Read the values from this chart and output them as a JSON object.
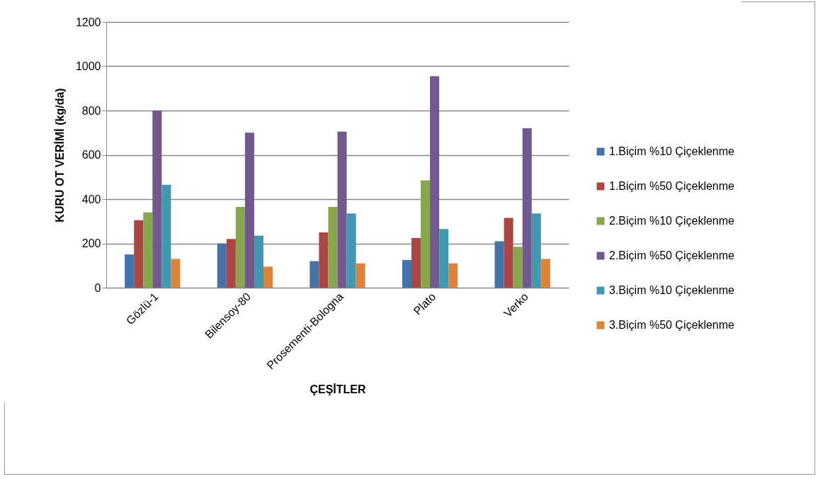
{
  "chart_data": {
    "type": "bar",
    "xlabel": "ÇEŞİTLER",
    "ylabel": "KURU OT VERİMİ (kg/da)",
    "categories": [
      "Gözlü-1",
      "Bilensoy-80",
      "Prosementi-Bologna",
      "Plato",
      "Verko"
    ],
    "series": [
      {
        "name": "1.Biçim %10 Çiçeklenme",
        "color": "#4572a7",
        "values": [
          150,
          200,
          120,
          125,
          210
        ]
      },
      {
        "name": "1.Biçim %50 Çiçeklenme",
        "color": "#aa4643",
        "values": [
          305,
          220,
          250,
          225,
          315
        ]
      },
      {
        "name": "2.Biçim %10 Çiçeklenme",
        "color": "#89a54e",
        "values": [
          340,
          365,
          365,
          485,
          185
        ]
      },
      {
        "name": "2.Biçim %50 Çiçeklenme",
        "color": "#71588f",
        "values": [
          800,
          700,
          705,
          955,
          720
        ]
      },
      {
        "name": "3.Biçim %10 Çiçeklenme",
        "color": "#4198af",
        "values": [
          465,
          235,
          335,
          265,
          335
        ]
      },
      {
        "name": "3.Biçim %50 Çiçeklenme",
        "color": "#db843d",
        "values": [
          130,
          95,
          110,
          110,
          130
        ]
      }
    ],
    "ylim": [
      0,
      1200
    ],
    "yticks": [
      0,
      200,
      400,
      600,
      800,
      {
        "value": 1000,
        "label": "1000"
      },
      {
        "value": 1200,
        "label": "1200"
      }
    ],
    "grid": "y",
    "legend": "right"
  }
}
